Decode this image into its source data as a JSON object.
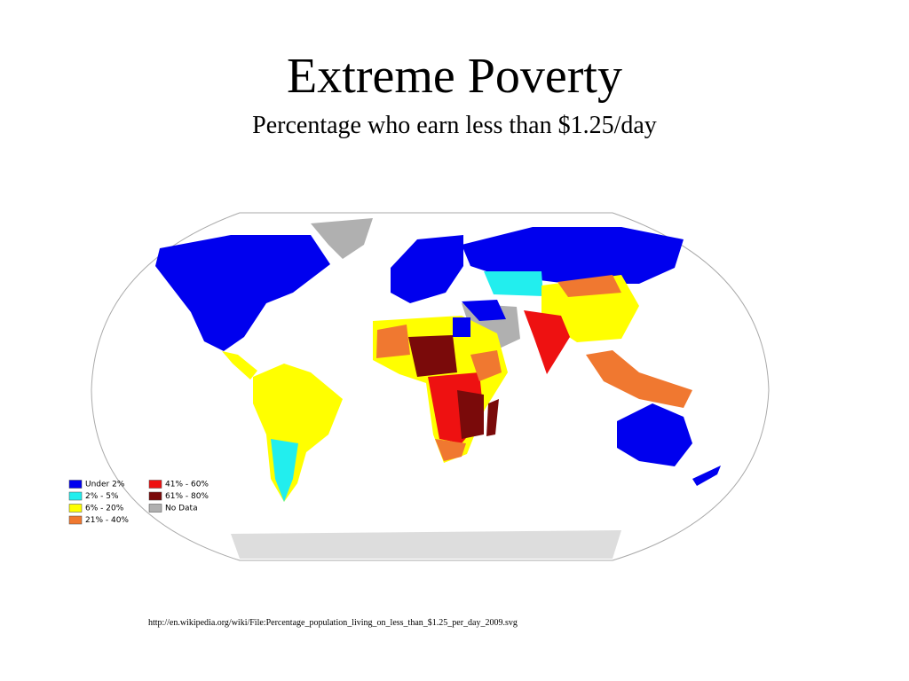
{
  "header": {
    "title": "Extreme Poverty",
    "subtitle": "Percentage who earn less than $1.25/day"
  },
  "legend": [
    {
      "label": "Under 2%",
      "color": "#0000ee"
    },
    {
      "label": "2% - 5%",
      "color": "#22eeee"
    },
    {
      "label": "6% - 20%",
      "color": "#ffff00"
    },
    {
      "label": "21% - 40%",
      "color": "#f07830"
    },
    {
      "label": "41% - 60%",
      "color": "#ee1111"
    },
    {
      "label": "61% - 80%",
      "color": "#7a0a0a"
    },
    {
      "label": "No Data",
      "color": "#b0b0b0"
    }
  ],
  "source": "http://en.wikipedia.org/wiki/File:Percentage_population_living_on_less_than_$1.25_per_day_2009.svg"
}
